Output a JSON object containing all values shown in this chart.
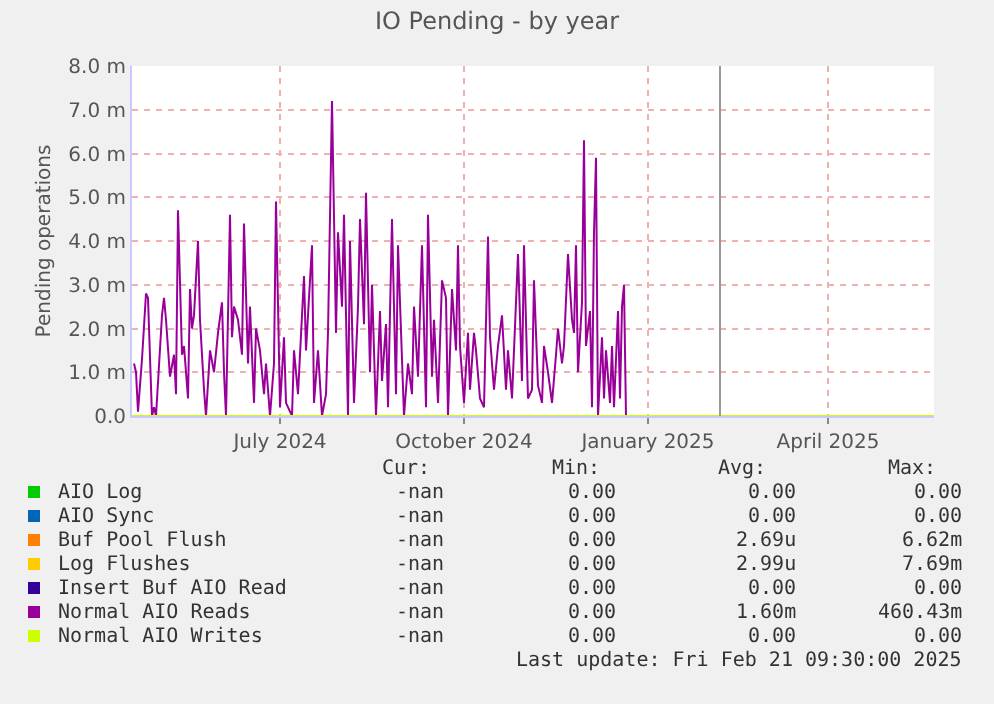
{
  "chart_data": {
    "type": "line",
    "title": "IO Pending - by year",
    "ylabel": "Pending operations",
    "xlim": [
      "2024-04-18",
      "2025-05-24"
    ],
    "xticks": [
      {
        "value": "2024-07-01",
        "label": "July 2024"
      },
      {
        "value": "2024-10-01",
        "label": "October 2024"
      },
      {
        "value": "2025-01-01",
        "label": "January 2025"
      },
      {
        "value": "2025-04-01",
        "label": "April 2025"
      }
    ],
    "ylim": [
      0,
      8
    ],
    "yticks": [
      {
        "value": 0,
        "label": "0.0"
      },
      {
        "value": 1,
        "label": "1.0 m"
      },
      {
        "value": 2,
        "label": "2.0 m"
      },
      {
        "value": 3,
        "label": "3.0 m"
      },
      {
        "value": 4,
        "label": "4.0 m"
      },
      {
        "value": 5,
        "label": "5.0 m"
      },
      {
        "value": 6,
        "label": "6.0 m"
      },
      {
        "value": 7,
        "label": "7.0 m"
      },
      {
        "value": 8,
        "label": "8.0 m"
      }
    ],
    "grid": true,
    "legend": "bottom left",
    "marker": "none",
    "line_style": "solid",
    "ref_lines": [
      {
        "axis": "x",
        "value": "2025-02-06",
        "color": "#999999"
      }
    ],
    "series": [
      {
        "name": "AIO Log",
        "color": "#00cc00"
      },
      {
        "name": "AIO Sync",
        "color": "#0066b3"
      },
      {
        "name": "Buf Pool Flush",
        "color": "#ff8000"
      },
      {
        "name": "Log Flushes",
        "color": "#ffcc00"
      },
      {
        "name": "Insert Buf AIO Read",
        "color": "#330099"
      },
      {
        "name": "Normal AIO Reads",
        "color": "#990099",
        "x": [
          "2024-04-19",
          "2024-04-20",
          "2024-04-21",
          "2024-04-23",
          "2024-04-25",
          "2024-04-26",
          "2024-04-28",
          "2024-04-29",
          "2024-04-30",
          "2024-05-03",
          "2024-05-04",
          "2024-05-05",
          "2024-05-07",
          "2024-05-09",
          "2024-05-10",
          "2024-05-11",
          "2024-05-13",
          "2024-05-14",
          "2024-05-16",
          "2024-05-17",
          "2024-05-18",
          "2024-05-19",
          "2024-05-21",
          "2024-05-22",
          "2024-05-24",
          "2024-05-25",
          "2024-05-27",
          "2024-05-29",
          "2024-05-31",
          "2024-06-02",
          "2024-06-03",
          "2024-06-04",
          "2024-06-06",
          "2024-06-07",
          "2024-06-08",
          "2024-06-10",
          "2024-06-12",
          "2024-06-13",
          "2024-06-15",
          "2024-06-16",
          "2024-06-18",
          "2024-06-19",
          "2024-06-21",
          "2024-06-23",
          "2024-06-24",
          "2024-06-26",
          "2024-06-28",
          "2024-06-29",
          "2024-07-01",
          "2024-07-03",
          "2024-07-04",
          "2024-07-07",
          "2024-07-08",
          "2024-07-10",
          "2024-07-13",
          "2024-07-14",
          "2024-07-17",
          "2024-07-18",
          "2024-07-20",
          "2024-07-22",
          "2024-07-24",
          "2024-07-25",
          "2024-07-27",
          "2024-07-29",
          "2024-07-30",
          "2024-08-01",
          "2024-08-02",
          "2024-08-04",
          "2024-08-05",
          "2024-08-07",
          "2024-08-09",
          "2024-08-10",
          "2024-08-12",
          "2024-08-13",
          "2024-08-15",
          "2024-08-16",
          "2024-08-18",
          "2024-08-20",
          "2024-08-21",
          "2024-08-23",
          "2024-08-24",
          "2024-08-26",
          "2024-08-28",
          "2024-08-29",
          "2024-09-01",
          "2024-09-03",
          "2024-09-05",
          "2024-09-06",
          "2024-09-08",
          "2024-09-10",
          "2024-09-12",
          "2024-09-13",
          "2024-09-15",
          "2024-09-16",
          "2024-09-18",
          "2024-09-20",
          "2024-09-22",
          "2024-09-23",
          "2024-09-25",
          "2024-09-27",
          "2024-09-28",
          "2024-09-29",
          "2024-10-01",
          "2024-10-03",
          "2024-10-04",
          "2024-10-06",
          "2024-10-07",
          "2024-10-09",
          "2024-10-11",
          "2024-10-13",
          "2024-10-14",
          "2024-10-16",
          "2024-10-18",
          "2024-10-20",
          "2024-10-22",
          "2024-10-23",
          "2024-10-25",
          "2024-10-26",
          "2024-10-28",
          "2024-10-30",
          "2024-10-31",
          "2024-11-02",
          "2024-11-04",
          "2024-11-05",
          "2024-11-07",
          "2024-11-09",
          "2024-11-10",
          "2024-11-12",
          "2024-11-14",
          "2024-11-16",
          "2024-11-17",
          "2024-11-19",
          "2024-11-20",
          "2024-11-22",
          "2024-11-24",
          "2024-11-25",
          "2024-11-26",
          "2024-11-27",
          "2024-11-29",
          "2024-11-30",
          "2024-12-01",
          "2024-12-03",
          "2024-12-04",
          "2024-12-05",
          "2024-12-06",
          "2024-12-07",
          "2024-12-09",
          "2024-12-10",
          "2024-12-11",
          "2024-12-13",
          "2024-12-14",
          "2024-12-15",
          "2024-12-17",
          "2024-12-18",
          "2024-12-19",
          "2024-12-20",
          "2024-12-21"
        ],
        "values": [
          1.2,
          1.0,
          0.1,
          1.3,
          2.8,
          2.7,
          0.0,
          0.2,
          0.0,
          2.3,
          2.7,
          2.2,
          0.9,
          1.4,
          0.5,
          4.7,
          1.4,
          1.6,
          0.4,
          2.9,
          2.0,
          2.3,
          4.0,
          2.2,
          0.6,
          0.0,
          1.5,
          1.0,
          1.9,
          2.6,
          1.0,
          0.0,
          4.6,
          1.8,
          2.5,
          2.2,
          1.4,
          4.4,
          1.2,
          2.5,
          0.3,
          2.0,
          1.5,
          0.5,
          1.2,
          0.0,
          1.2,
          4.9,
          0.2,
          1.8,
          0.3,
          0.0,
          1.5,
          0.5,
          3.2,
          1.5,
          3.9,
          0.3,
          1.5,
          0.0,
          0.5,
          1.9,
          7.2,
          1.9,
          4.2,
          2.5,
          4.6,
          0.0,
          4.0,
          0.3,
          2.5,
          4.5,
          2.1,
          5.1,
          1.0,
          3.0,
          0.0,
          2.4,
          0.8,
          2.1,
          0.2,
          4.5,
          0.5,
          3.9,
          0.0,
          1.2,
          0.5,
          2.5,
          0.9,
          3.9,
          0.2,
          4.6,
          0.9,
          2.2,
          0.3,
          3.1,
          2.7,
          0.0,
          2.9,
          1.5,
          3.9,
          1.6,
          0.3,
          1.9,
          0.6,
          1.9,
          1.5,
          0.4,
          0.2,
          4.1,
          1.8,
          0.6,
          1.6,
          2.3,
          0.6,
          1.5,
          0.4,
          1.5,
          3.7,
          0.8,
          3.9,
          0.4,
          0.6,
          3.1,
          0.7,
          0.3,
          1.6,
          1.0,
          0.3,
          1.4,
          2.0,
          1.2,
          1.6,
          3.7,
          2.2,
          1.9,
          3.9,
          1.0,
          2.6,
          6.3,
          1.6,
          2.4,
          0.2,
          4.2,
          5.9,
          0.0,
          1.8,
          0.4,
          1.5,
          0.3,
          1.6,
          0.2,
          2.4,
          0.4,
          2.5,
          3.0,
          0.0
        ]
      },
      {
        "name": "Normal AIO Writes",
        "color": "#ccff00",
        "x": [
          "2024-04-18",
          "2025-05-24"
        ],
        "values": [
          0,
          0
        ]
      }
    ],
    "annotations": [
      "Cur:",
      "Min:",
      "Avg:",
      "Max:",
      "-nan",
      "0.00",
      "0.00",
      "0.00",
      "-nan",
      "0.00",
      "0.00",
      "0.00",
      "-nan",
      "0.00",
      "2.69u",
      "6.62m",
      "-nan",
      "0.00",
      "2.99u",
      "7.69m",
      "-nan",
      "0.00",
      "0.00",
      "0.00",
      "-nan",
      "0.00",
      "1.60m",
      "460.43m",
      "-nan",
      "0.00",
      "0.00",
      "0.00",
      "Last update: Fri Feb 21 09:30:00 2025"
    ]
  }
}
